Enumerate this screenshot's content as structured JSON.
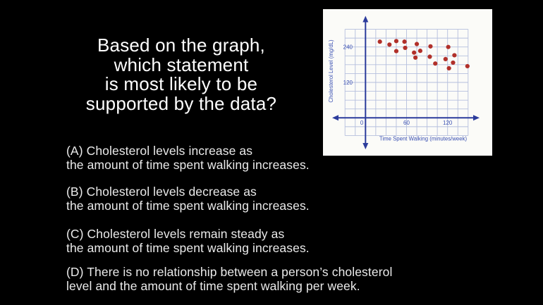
{
  "slide": {
    "background_color": "#000000",
    "title_color": "#ffffff",
    "body_text_color": "#eaeaea",
    "title_lines": [
      "Based on the graph,",
      "which statement",
      "is most likely to be",
      "supported by the data?"
    ],
    "options": [
      {
        "id": "A",
        "line1": "(A) Cholesterol levels increase as",
        "line2": "the amount of time spent walking increases."
      },
      {
        "id": "B",
        "line1": "(B) Cholesterol levels decrease as",
        "line2": "the amount of time spent walking increases."
      },
      {
        "id": "C",
        "line1": "(C) Cholesterol levels remain steady as",
        "line2": "the amount of time spent walking increases."
      },
      {
        "id": "D",
        "line1": "(D) There is no relationship between a person’s cholesterol",
        "line2": "level and the amount of time spent walking per week."
      }
    ]
  },
  "chart_data": {
    "type": "scatter",
    "title": "",
    "xlabel": "Time Spent Walking (minutes/week)",
    "ylabel": "Cholesterol Level (mg/dL)",
    "x_ticks": [
      0,
      60,
      120
    ],
    "y_ticks": [
      240,
      120
    ],
    "xlim": [
      -45,
      165
    ],
    "ylim": [
      -75,
      330
    ],
    "grid": true,
    "grid_step_x": 15,
    "grid_step_y": 30,
    "grid_x_range": [
      -30,
      150
    ],
    "grid_y_range": [
      -60,
      300
    ],
    "legend": "none",
    "points": [
      [
        21,
        258
      ],
      [
        35,
        248
      ],
      [
        45,
        260
      ],
      [
        45,
        226
      ],
      [
        57,
        258
      ],
      [
        58,
        237
      ],
      [
        71,
        221
      ],
      [
        73,
        204
      ],
      [
        75,
        250
      ],
      [
        80,
        227
      ],
      [
        94,
        207
      ],
      [
        95,
        242
      ],
      [
        102,
        184
      ],
      [
        117,
        199
      ],
      [
        121,
        240
      ],
      [
        122,
        168
      ],
      [
        128,
        187
      ],
      [
        130,
        212
      ],
      [
        149,
        175
      ]
    ],
    "colors": {
      "axis": "#2c3c9c",
      "grid": "#b5bfdd",
      "dot": "#b1302a",
      "tick_label": "#3a50b2",
      "panel_bg": "#fbfbf8"
    }
  }
}
